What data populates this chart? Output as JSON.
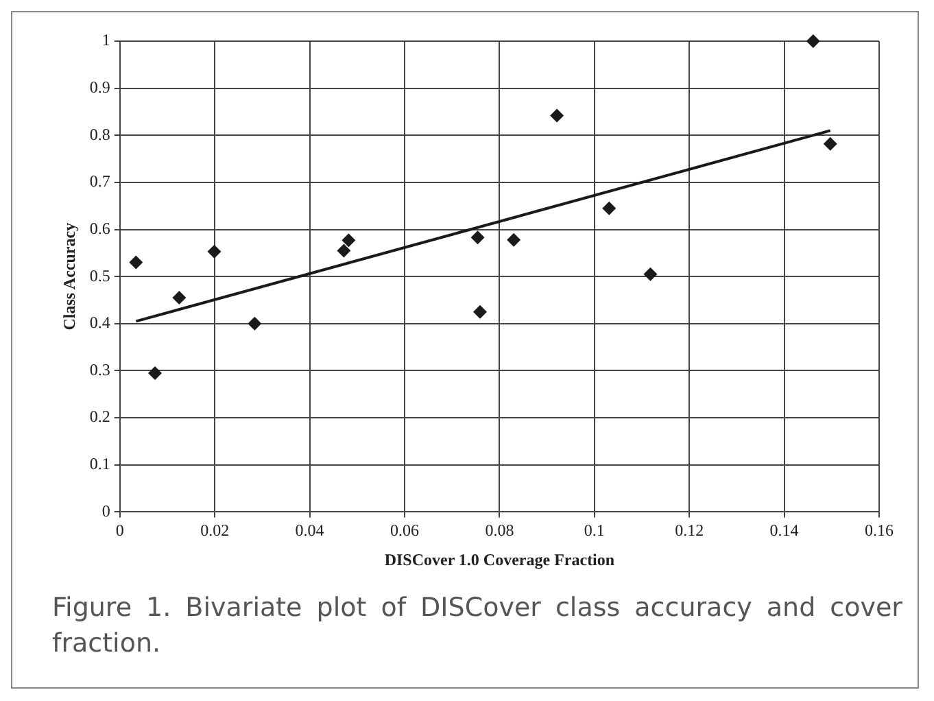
{
  "chart_data": {
    "type": "scatter",
    "xlabel": "DISCover 1.0 Coverage Fraction",
    "ylabel": "Class Accuracy",
    "annotations": [
      "Figure 1. Bivariate plot of DISCover class accuracy and cover fraction."
    ],
    "marker": "diamond",
    "grid": true,
    "legend": false,
    "xlim": [
      0,
      0.16
    ],
    "xticks": [
      0,
      0.02,
      0.04,
      0.06,
      0.08,
      0.1,
      0.12,
      0.14,
      0.16
    ],
    "ylim": [
      0,
      1
    ],
    "yticks": [
      0,
      0.1,
      0.2,
      0.3,
      0.4,
      0.5,
      0.6,
      0.7,
      0.8,
      0.9,
      1
    ],
    "series": [
      {
        "color": "#1a1a1a",
        "x": [
          0.0034,
          0.0074,
          0.0125,
          0.0199,
          0.0284,
          0.0472,
          0.0482,
          0.0754,
          0.0759,
          0.083,
          0.0921,
          0.1031,
          0.1118,
          0.1461,
          0.1497
        ],
        "values": [
          0.53,
          0.295,
          0.455,
          0.553,
          0.4,
          0.555,
          0.577,
          0.583,
          0.425,
          0.578,
          0.842,
          0.645,
          0.505,
          1.0,
          0.782
        ]
      },
      {
        "type": "line",
        "color": "#1a1a1a",
        "marker": "none",
        "x": [
          0.0034,
          0.1497
        ],
        "values": [
          0.405,
          0.81
        ]
      }
    ]
  }
}
